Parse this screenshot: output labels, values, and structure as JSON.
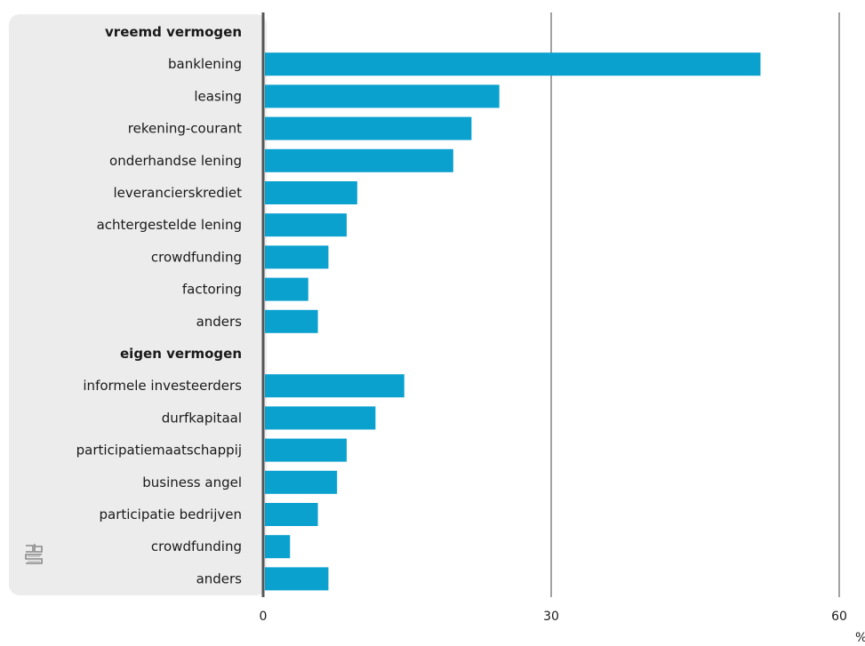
{
  "chart_data": {
    "type": "bar",
    "orientation": "horizontal",
    "xlim": [
      0,
      60
    ],
    "xticks": [
      "0",
      "30",
      "60"
    ],
    "xunit": "%",
    "grid": true,
    "bar_color": "#0ba1cf",
    "panel_color": "#ececec",
    "rows": [
      {
        "label": "vreemd vermogen",
        "header": true
      },
      {
        "label": "banklening",
        "value": 51.8
      },
      {
        "label": "leasing",
        "value": 24.6
      },
      {
        "label": "rekening-courant",
        "value": 21.7
      },
      {
        "label": "onderhandse lening",
        "value": 19.8
      },
      {
        "label": "leverancierskrediet",
        "value": 9.8
      },
      {
        "label": "achtergestelde lening",
        "value": 8.7
      },
      {
        "label": "crowdfunding",
        "value": 6.8
      },
      {
        "label": "factoring",
        "value": 4.7
      },
      {
        "label": "anders",
        "value": 5.7
      },
      {
        "label": "eigen vermogen",
        "header": true
      },
      {
        "label": "informele investeerders",
        "value": 14.7
      },
      {
        "label": "durfkapitaal",
        "value": 11.7
      },
      {
        "label": "participatiemaatschappij",
        "value": 8.7
      },
      {
        "label": "business angel",
        "value": 7.7
      },
      {
        "label": "participatie bedrijven",
        "value": 5.7
      },
      {
        "label": "crowdfunding",
        "value": 2.8
      },
      {
        "label": "anders",
        "value": 6.8
      }
    ]
  },
  "logo": {
    "name": "cbs-logo",
    "text": "cbs"
  }
}
